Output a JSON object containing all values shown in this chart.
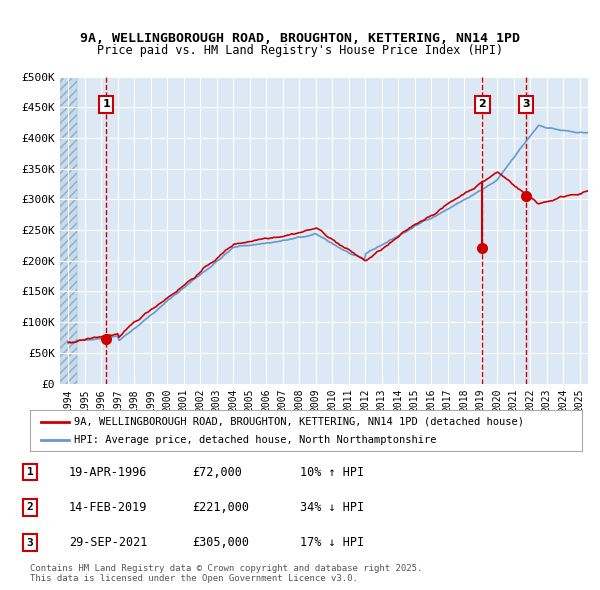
{
  "title1": "9A, WELLINGBOROUGH ROAD, BROUGHTON, KETTERING, NN14 1PD",
  "title2": "Price paid vs. HM Land Registry's House Price Index (HPI)",
  "bg_color": "#dce9f5",
  "plot_bg_color": "#dce9f5",
  "grid_color": "#ffffff",
  "red_line_color": "#cc0000",
  "blue_line_color": "#6699cc",
  "hatch_color": "#b0c4de",
  "ylabel_vals": [
    0,
    50000,
    100000,
    150000,
    200000,
    250000,
    300000,
    350000,
    400000,
    450000,
    500000
  ],
  "ylabel_labels": [
    "£0",
    "£50K",
    "£100K",
    "£150K",
    "£200K",
    "£250K",
    "£300K",
    "£350K",
    "£400K",
    "£450K",
    "£500K"
  ],
  "xlim_start": 1993.5,
  "xlim_end": 2025.5,
  "ylim_min": 0,
  "ylim_max": 500000,
  "sale_points": [
    {
      "year": 1996.3,
      "price": 72000,
      "label": "1"
    },
    {
      "year": 2019.1,
      "price": 221000,
      "label": "2"
    },
    {
      "year": 2021.75,
      "price": 305000,
      "label": "3"
    }
  ],
  "vline_years": [
    1996.3,
    2019.1,
    2021.75
  ],
  "legend_red": "9A, WELLINGBOROUGH ROAD, BROUGHTON, KETTERING, NN14 1PD (detached house)",
  "legend_blue": "HPI: Average price, detached house, North Northamptonshire",
  "table_rows": [
    {
      "num": "1",
      "date": "19-APR-1996",
      "price": "£72,000",
      "hpi": "10% ↑ HPI"
    },
    {
      "num": "2",
      "date": "14-FEB-2019",
      "price": "£221,000",
      "hpi": "34% ↓ HPI"
    },
    {
      "num": "3",
      "date": "29-SEP-2021",
      "price": "£305,000",
      "hpi": "17% ↓ HPI"
    }
  ],
  "footnote": "Contains HM Land Registry data © Crown copyright and database right 2025.\nThis data is licensed under the Open Government Licence v3.0.",
  "box_color": "#cc0000",
  "xtick_years": [
    1994,
    1995,
    1996,
    1997,
    1998,
    1999,
    2000,
    2001,
    2002,
    2003,
    2004,
    2005,
    2006,
    2007,
    2008,
    2009,
    2010,
    2011,
    2012,
    2013,
    2014,
    2015,
    2016,
    2017,
    2018,
    2019,
    2020,
    2021,
    2022,
    2023,
    2024,
    2025
  ]
}
